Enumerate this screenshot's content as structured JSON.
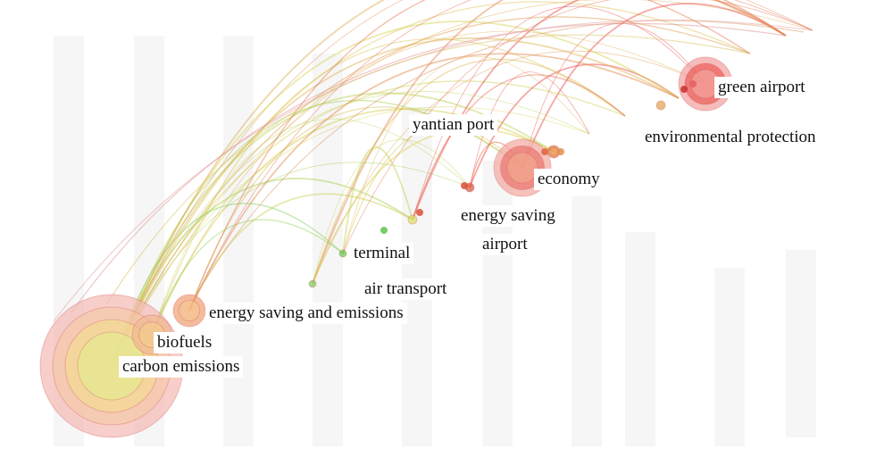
{
  "keywords": [
    {
      "id": "green-airport",
      "label": "green airport",
      "color": "#e8413a"
    },
    {
      "id": "environmental-protection",
      "label": "environmental protection",
      "color": "#d9c64a"
    },
    {
      "id": "yantian-port",
      "label": "yantian port",
      "color": "#e0b64a"
    },
    {
      "id": "economy",
      "label": "economy",
      "color": "#e8413a"
    },
    {
      "id": "energy-saving",
      "label": "energy saving",
      "color": "#d8503a"
    },
    {
      "id": "airport",
      "label": "airport",
      "color": "#c8d860"
    },
    {
      "id": "terminal",
      "label": "terminal",
      "color": "#5cc84a"
    },
    {
      "id": "air-transport",
      "label": "air transport",
      "color": "#7cc85a"
    },
    {
      "id": "energy-saving-and-emissions",
      "label": "energy saving and emissions",
      "color": "#e89a60"
    },
    {
      "id": "biofuels",
      "label": "biofuels",
      "color": "#d8a060"
    },
    {
      "id": "carbon-emissions",
      "label": "carbon emissions",
      "color": "#e88080"
    }
  ],
  "colors": {
    "early": "#5cc84a",
    "mid": "#d9d04a",
    "late": "#e8413a"
  }
}
